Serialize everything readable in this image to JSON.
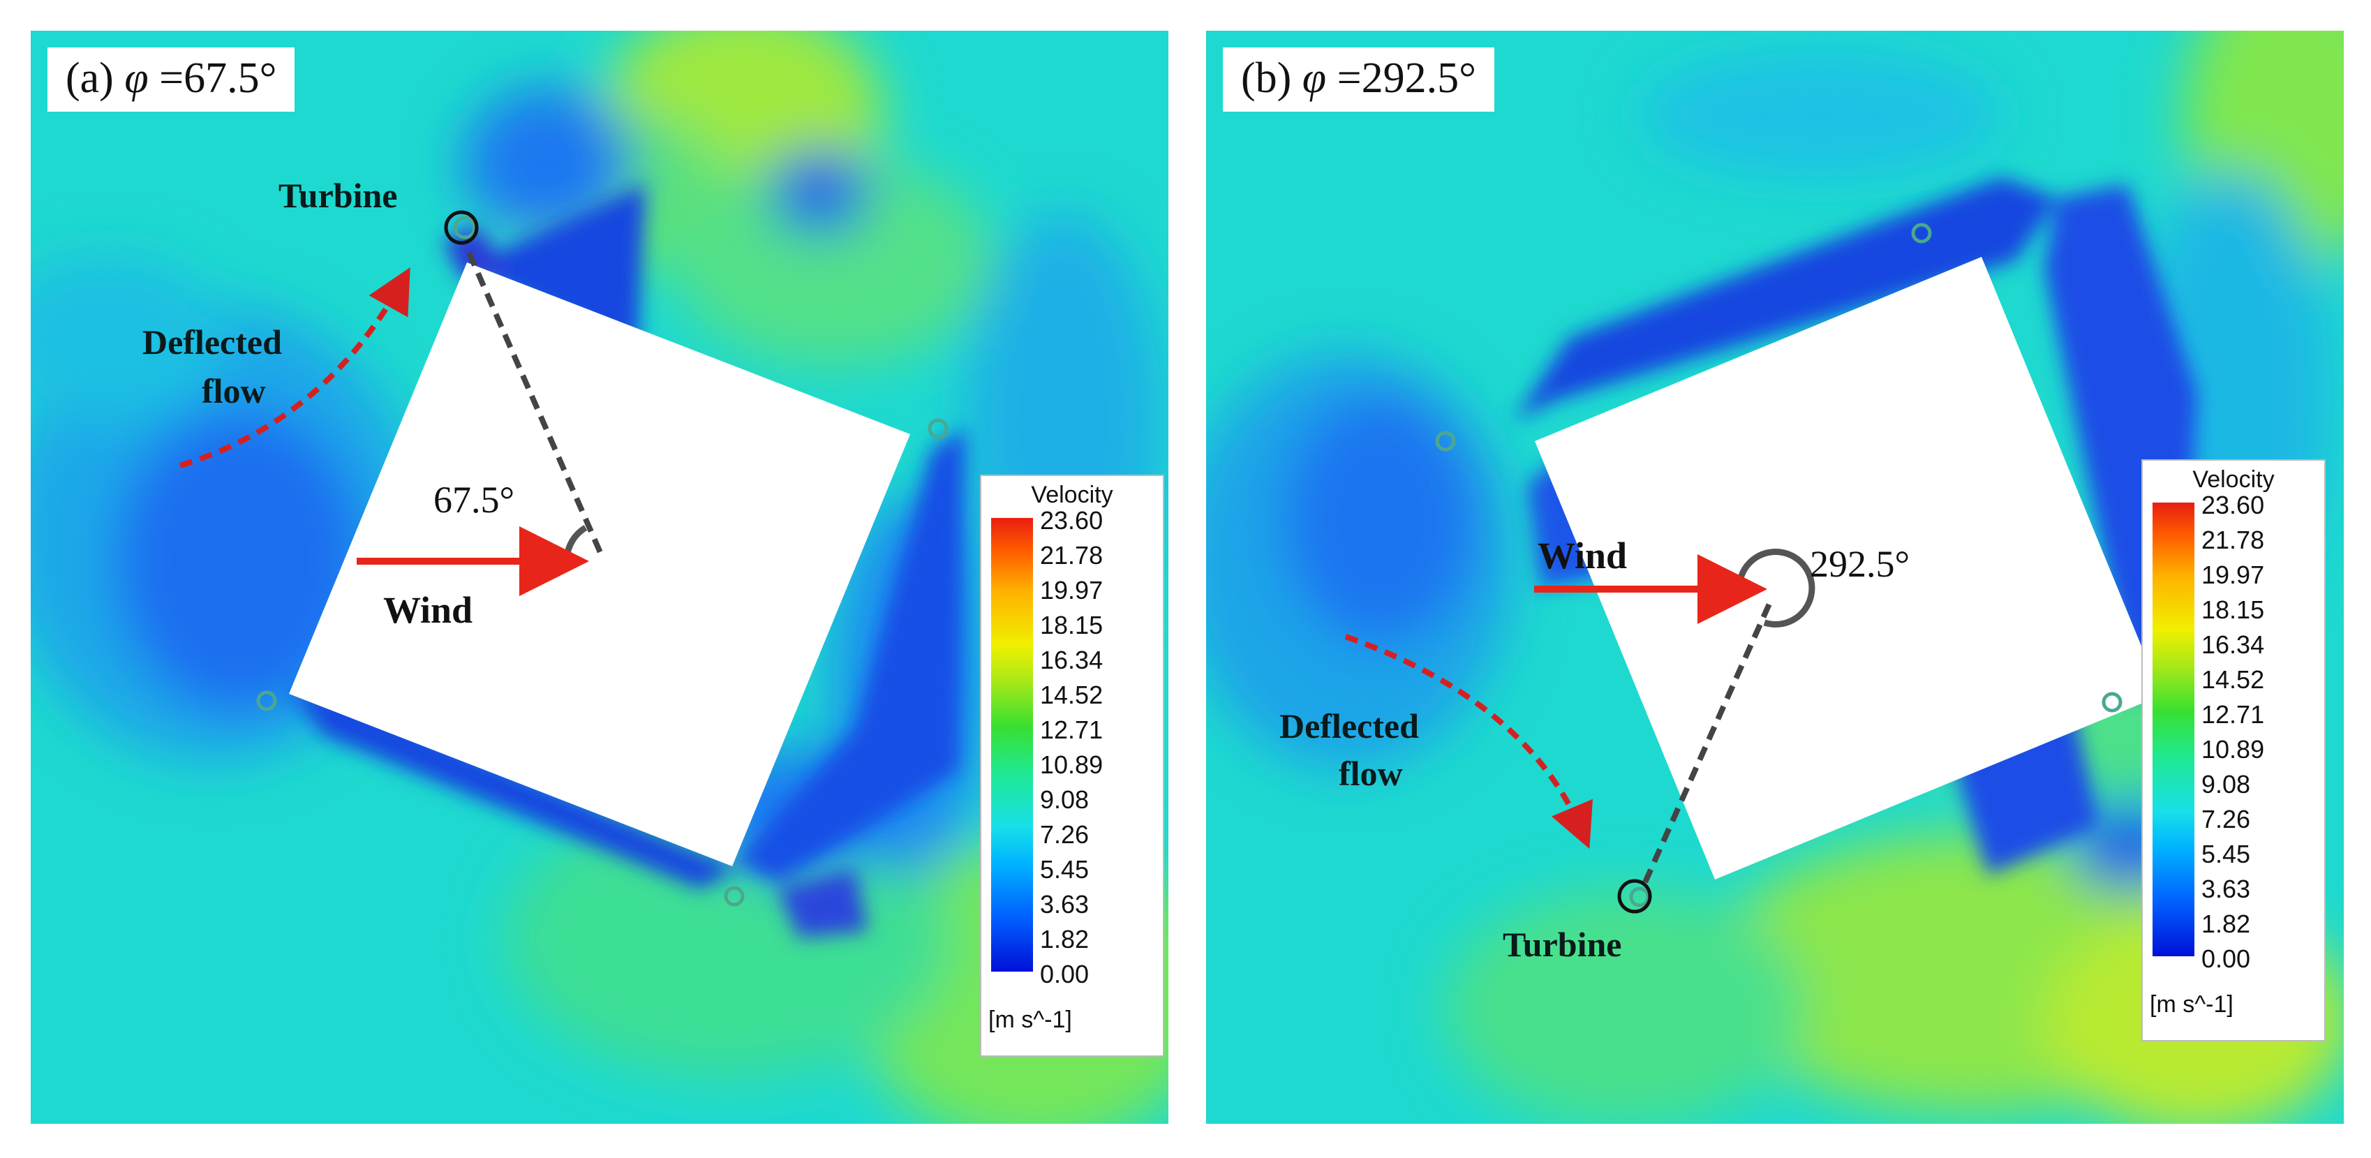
{
  "panels": [
    {
      "title_prefix": "(a) ",
      "title_symbol": "φ",
      "title_value": " =67.5°",
      "turbine_label": "Turbine",
      "deflected_line1": "Deflected",
      "deflected_line2": "flow",
      "angle_label": "67.5°",
      "wind_label": "Wind"
    },
    {
      "title_prefix": "(b) ",
      "title_symbol": "φ",
      "title_value": " =292.5°",
      "turbine_label": "Turbine",
      "deflected_line1": "Deflected",
      "deflected_line2": "flow",
      "angle_label": "292.5°",
      "wind_label": "Wind"
    }
  ],
  "legend": {
    "title": "Velocity",
    "ticks": [
      "23.60",
      "21.78",
      "19.97",
      "18.15",
      "16.34",
      "14.52",
      "12.71",
      "10.89",
      "9.08",
      "7.26",
      "5.45",
      "3.63",
      "1.82",
      "0.00"
    ],
    "unit": "[m s^-1]"
  },
  "colors": {
    "background_field": "#1ed9cf",
    "wake_low": "#1e50e0",
    "high_speed": "#7ee84a",
    "arrow_red": "#e8251a",
    "deflected_arrow": "#d62020",
    "angle_line": "#555555"
  }
}
